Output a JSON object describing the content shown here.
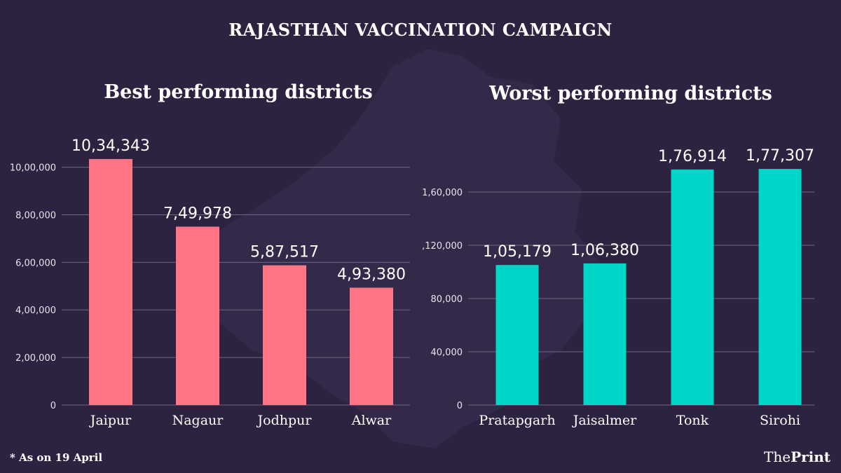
{
  "title": "RAJASTHAN VACCINATION CAMPAIGN",
  "footnote": "* As on 19 April",
  "brand": {
    "prefix": "The",
    "suffix": "Print"
  },
  "colors": {
    "background": "#2d2340",
    "best": "#ff7586",
    "worst": "#00d6c8",
    "grid": "#6e6682"
  },
  "chart_data": [
    {
      "type": "bar",
      "title": "Best performing districts",
      "categories": [
        "Jaipur",
        "Nagaur",
        "Jodhpur",
        "Alwar"
      ],
      "values": [
        1034343,
        749978,
        587517,
        493380
      ],
      "value_labels": [
        "10,34,343",
        "7,49,978",
        "5,87,517",
        "4,93,380"
      ],
      "yticks": [
        0,
        200000,
        400000,
        600000,
        800000,
        1000000
      ],
      "ytick_labels": [
        "0",
        "2,00,000",
        "4,00,000",
        "6,00,000",
        "8,00,000",
        "10,00,000"
      ],
      "ylim": [
        0,
        1040000
      ],
      "grid": true,
      "color": "#ff7586"
    },
    {
      "type": "bar",
      "title": "Worst performing districts",
      "categories": [
        "Pratapgarh",
        "Jaisalmer",
        "Tonk",
        "Sirohi"
      ],
      "values": [
        105179,
        106380,
        176914,
        177307
      ],
      "value_labels": [
        "1,05,179",
        "1,06,380",
        "1,76,914",
        "1,77,307"
      ],
      "yticks": [
        0,
        40000,
        80000,
        120000,
        160000
      ],
      "ytick_labels": [
        "0",
        "40,000",
        "80,000",
        ",120,000",
        "1,60,000"
      ],
      "ylim": [
        0,
        180000
      ],
      "grid": true,
      "color": "#00d6c8"
    }
  ]
}
